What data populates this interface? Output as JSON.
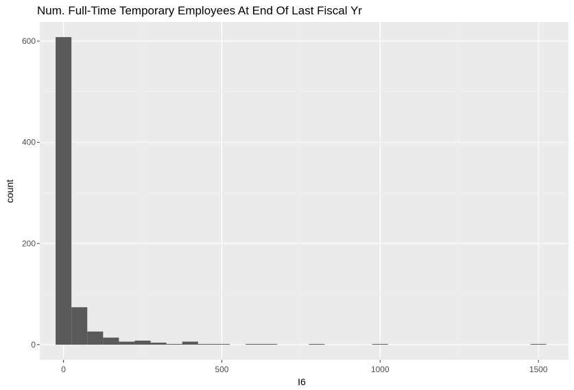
{
  "chart_data": {
    "type": "bar",
    "title": "Num. Full-Time Temporary Employees At End Of Last Fiscal Yr",
    "xlabel": "I6",
    "ylabel": "count",
    "xlim": [
      -75,
      1595
    ],
    "ylim": [
      -30,
      638
    ],
    "x_ticks": [
      0,
      500,
      1000,
      1500
    ],
    "x_tick_labels": [
      "0",
      "500",
      "1000",
      "1500"
    ],
    "y_ticks": [
      0,
      200,
      400,
      600
    ],
    "y_tick_labels": [
      "0",
      "200",
      "400",
      "600"
    ],
    "grid": true,
    "bin_width": 50,
    "bins": [
      {
        "x0": -25,
        "x1": 25,
        "count": 608
      },
      {
        "x0": 25,
        "x1": 75,
        "count": 74
      },
      {
        "x0": 75,
        "x1": 125,
        "count": 26
      },
      {
        "x0": 125,
        "x1": 175,
        "count": 14
      },
      {
        "x0": 175,
        "x1": 225,
        "count": 6
      },
      {
        "x0": 225,
        "x1": 275,
        "count": 8
      },
      {
        "x0": 275,
        "x1": 325,
        "count": 4
      },
      {
        "x0": 325,
        "x1": 375,
        "count": 1
      },
      {
        "x0": 375,
        "x1": 425,
        "count": 6
      },
      {
        "x0": 425,
        "x1": 475,
        "count": 1
      },
      {
        "x0": 475,
        "x1": 525,
        "count": 1
      },
      {
        "x0": 525,
        "x1": 575,
        "count": 0
      },
      {
        "x0": 575,
        "x1": 625,
        "count": 1
      },
      {
        "x0": 625,
        "x1": 675,
        "count": 1
      },
      {
        "x0": 675,
        "x1": 725,
        "count": 0
      },
      {
        "x0": 725,
        "x1": 775,
        "count": 0
      },
      {
        "x0": 775,
        "x1": 825,
        "count": 1
      },
      {
        "x0": 825,
        "x1": 875,
        "count": 0
      },
      {
        "x0": 875,
        "x1": 925,
        "count": 0
      },
      {
        "x0": 925,
        "x1": 975,
        "count": 0
      },
      {
        "x0": 975,
        "x1": 1025,
        "count": 1
      },
      {
        "x0": 1025,
        "x1": 1075,
        "count": 0
      },
      {
        "x0": 1075,
        "x1": 1125,
        "count": 0
      },
      {
        "x0": 1125,
        "x1": 1175,
        "count": 0
      },
      {
        "x0": 1175,
        "x1": 1225,
        "count": 0
      },
      {
        "x0": 1225,
        "x1": 1275,
        "count": 0
      },
      {
        "x0": 1275,
        "x1": 1325,
        "count": 0
      },
      {
        "x0": 1325,
        "x1": 1375,
        "count": 0
      },
      {
        "x0": 1375,
        "x1": 1425,
        "count": 0
      },
      {
        "x0": 1425,
        "x1": 1475,
        "count": 0
      },
      {
        "x0": 1475,
        "x1": 1525,
        "count": 1
      }
    ],
    "colors": {
      "panel_background": "#ebebeb",
      "grid_major": "#ffffff",
      "grid_minor": "#f5f5f5",
      "bar_fill": "#595959",
      "tick_color": "#333333",
      "tick_label_color": "#4d4d4d"
    }
  }
}
